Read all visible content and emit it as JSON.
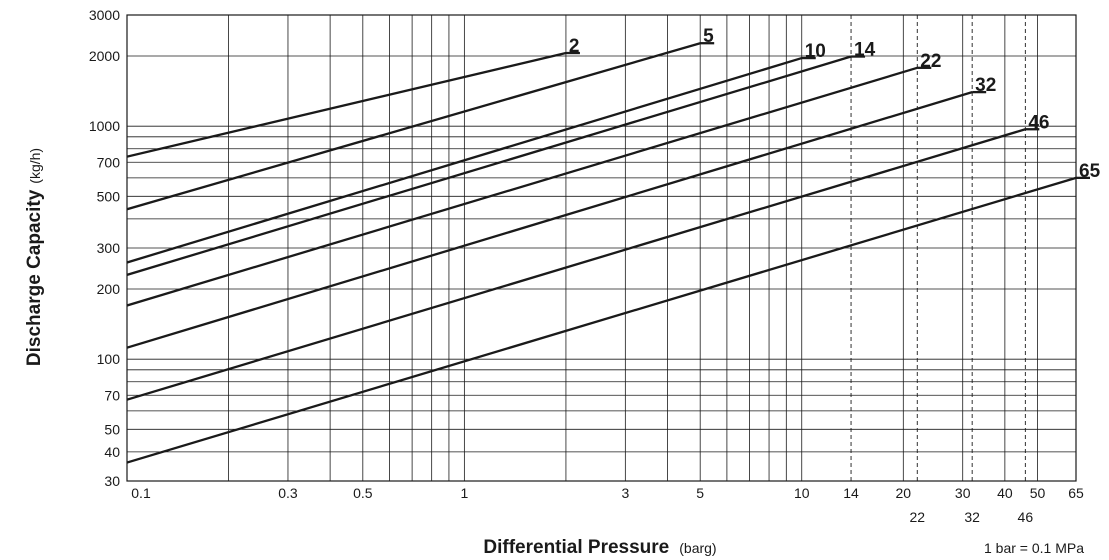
{
  "chart_data": {
    "type": "line",
    "x_scale": "log",
    "y_scale": "log",
    "xlim": [
      0.1,
      65
    ],
    "ylim": [
      30,
      3000
    ],
    "xlabel": "Differential Pressure",
    "xlabel_unit": "(barg)",
    "ylabel": "Discharge Capacity",
    "ylabel_unit": "(kg/h)",
    "note": "1 bar = 0.1 MPa",
    "grid": true,
    "x_ticks": [
      0.1,
      0.3,
      0.5,
      1,
      3,
      5,
      10,
      14,
      20,
      30,
      40,
      50,
      65
    ],
    "x_ticks_secondary": [
      22,
      32,
      46
    ],
    "x_gridlines_minor": [
      0.2,
      0.4,
      0.6,
      0.7,
      0.8,
      0.9,
      2,
      4,
      6,
      7,
      8,
      9
    ],
    "x_gridlines_dashed": [
      14,
      22,
      32,
      46
    ],
    "y_ticks": [
      30,
      40,
      50,
      70,
      100,
      200,
      300,
      500,
      700,
      1000,
      2000,
      3000
    ],
    "y_gridlines_minor": [
      60,
      80,
      90,
      400,
      600,
      800,
      900
    ],
    "line_color": "#1a1a1a",
    "series": [
      {
        "name": "2",
        "x": [
          0.1,
          2
        ],
        "y": [
          740,
          2060
        ]
      },
      {
        "name": "5",
        "x": [
          0.1,
          5
        ],
        "y": [
          440,
          2270
        ]
      },
      {
        "name": "10",
        "x": [
          0.1,
          10
        ],
        "y": [
          260,
          1960
        ]
      },
      {
        "name": "14",
        "x": [
          0.1,
          14
        ],
        "y": [
          230,
          1990
        ]
      },
      {
        "name": "22",
        "x": [
          0.1,
          22
        ],
        "y": [
          170,
          1780
        ]
      },
      {
        "name": "32",
        "x": [
          0.1,
          32
        ],
        "y": [
          112,
          1400
        ]
      },
      {
        "name": "46",
        "x": [
          0.1,
          46
        ],
        "y": [
          67,
          970
        ]
      },
      {
        "name": "65",
        "x": [
          0.1,
          65
        ],
        "y": [
          36,
          600
        ]
      }
    ]
  }
}
